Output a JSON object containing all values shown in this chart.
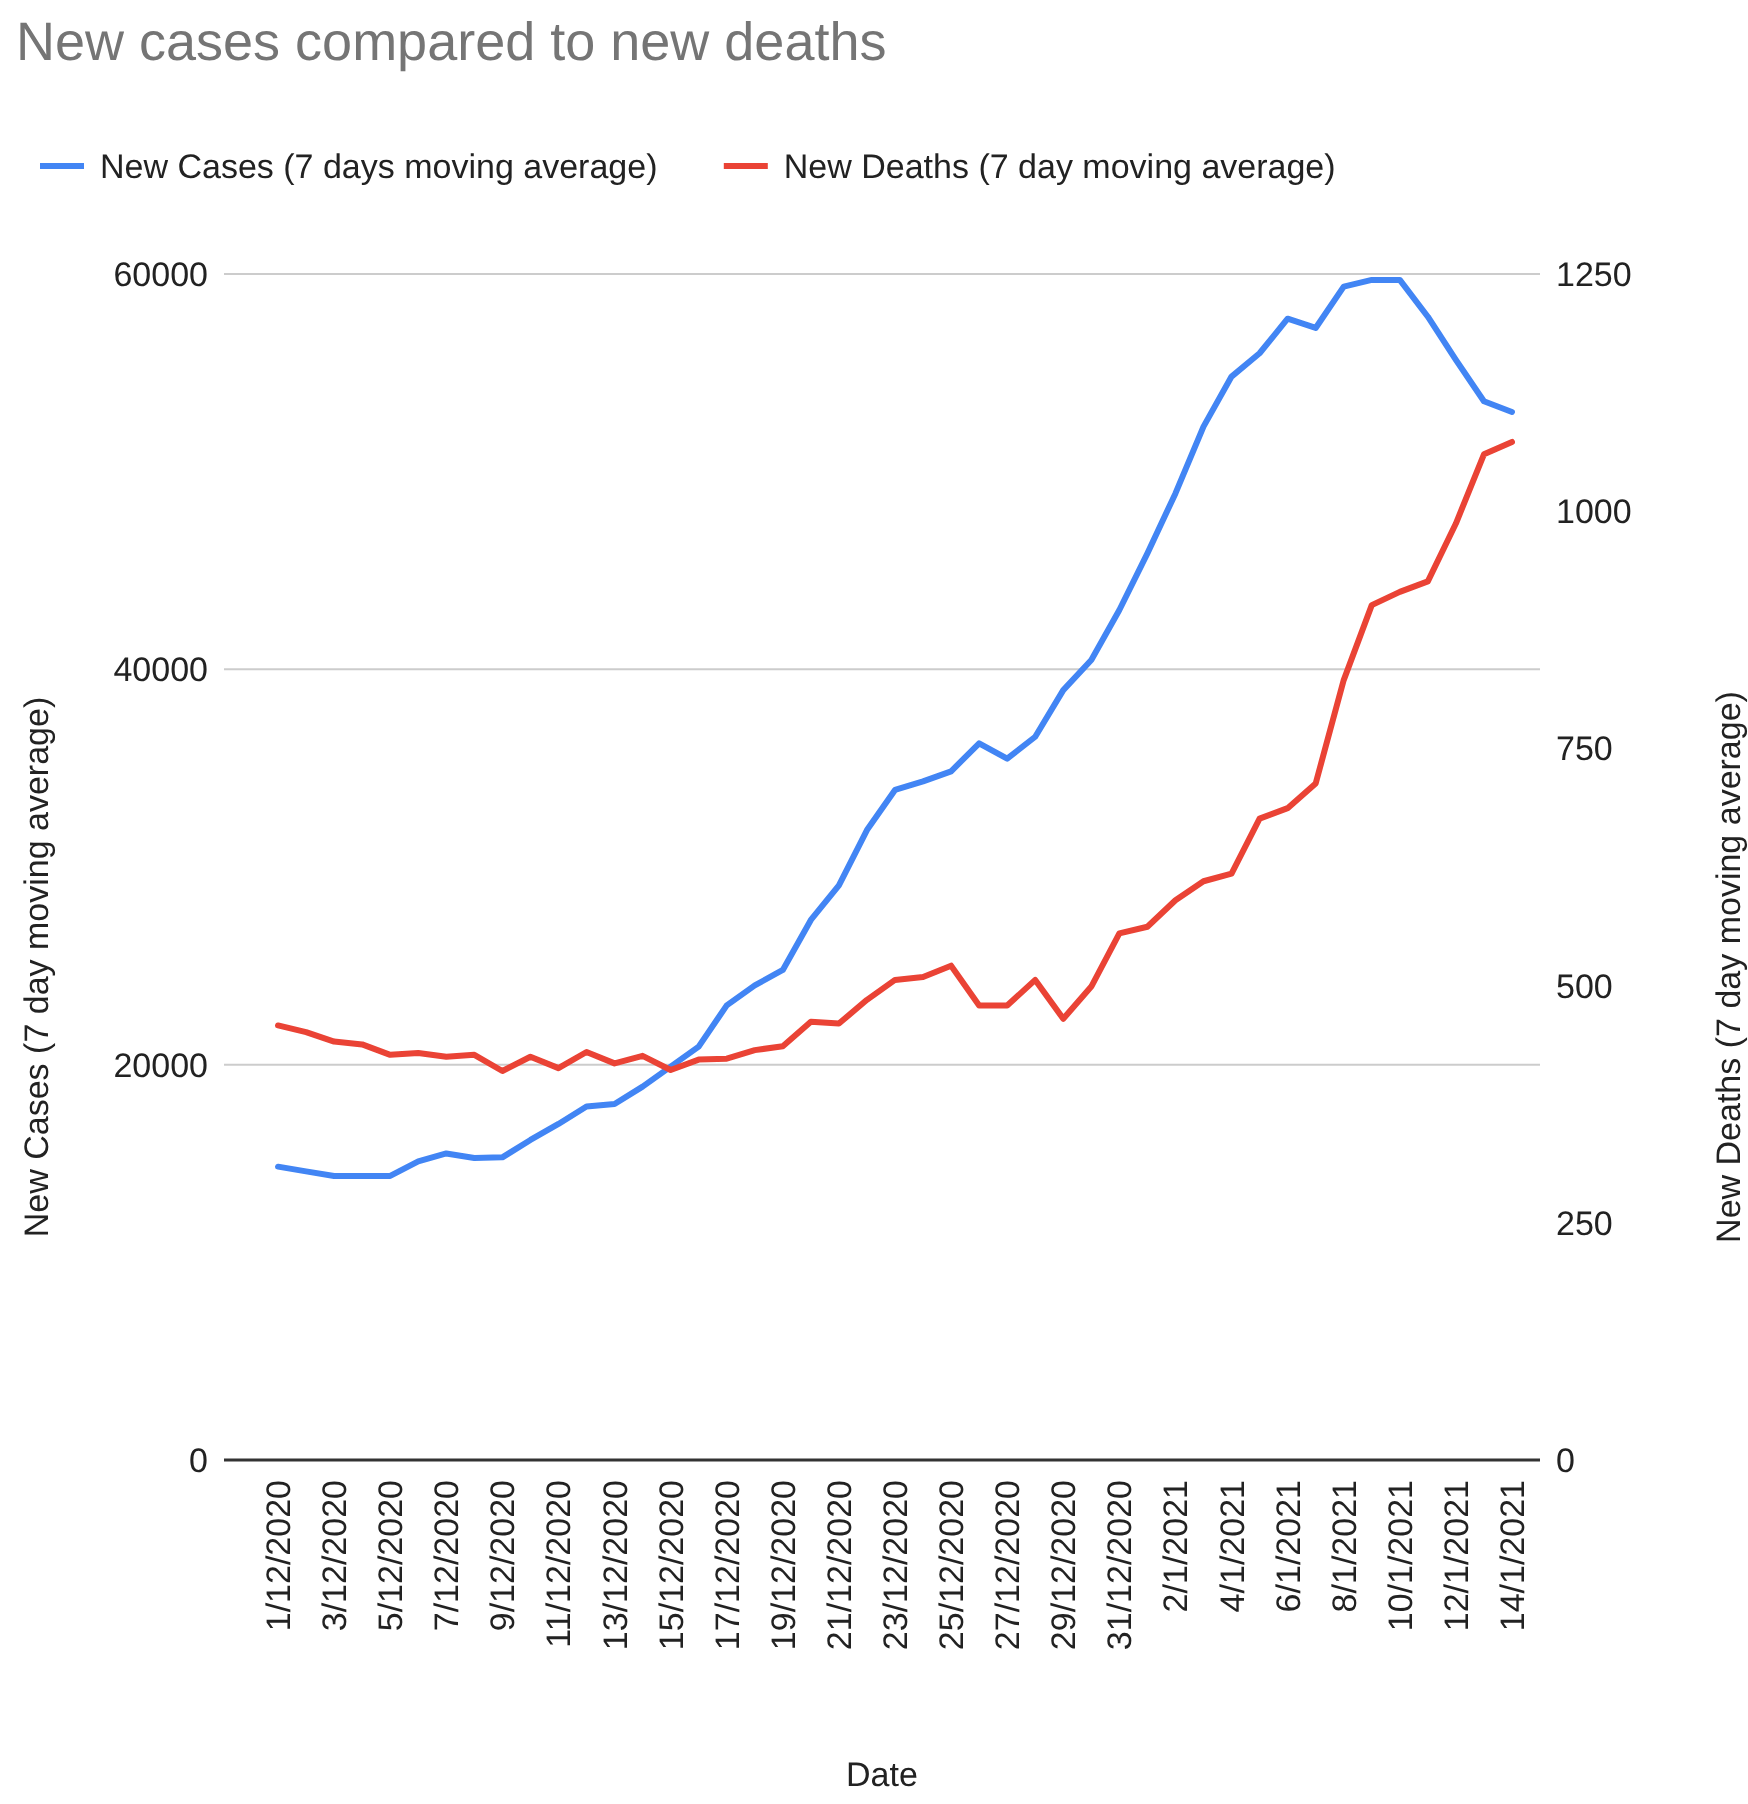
{
  "chart_data": {
    "type": "line",
    "title": "New cases compared to new deaths",
    "xlabel": "Date",
    "ylabel": "New Cases (7 day moving average)",
    "y2label": "New Deaths (7 day moving average)",
    "categories": [
      "1/12/2020",
      null,
      "3/12/2020",
      null,
      "5/12/2020",
      null,
      "7/12/2020",
      null,
      "9/12/2020",
      null,
      "11/12/2020",
      null,
      "13/12/2020",
      null,
      "15/12/2020",
      null,
      "17/12/2020",
      null,
      "19/12/2020",
      null,
      "21/12/2020",
      null,
      "23/12/2020",
      null,
      "25/12/2020",
      null,
      "27/12/2020",
      null,
      "29/12/2020",
      null,
      "31/12/2020",
      null,
      "2/1/2021",
      null,
      "4/1/2021",
      null,
      "6/1/2021",
      null,
      "8/1/2021",
      null,
      "10/1/2021",
      null,
      "12/1/2021",
      null,
      "14/1/2021"
    ],
    "series": [
      {
        "name": "New Cases (7 days moving average)",
        "color": "#4285f4",
        "values": [
          14840,
          14600,
          14370,
          14370,
          14370,
          15110,
          15510,
          15280,
          15310,
          16190,
          17000,
          17880,
          18010,
          18890,
          19900,
          20910,
          23000,
          24010,
          24790,
          27320,
          29070,
          31870,
          33900,
          34330,
          34840,
          36260,
          35480,
          36590,
          38950,
          40470,
          43000,
          45870,
          48900,
          52280,
          54810,
          55990,
          57740,
          57270,
          59360,
          59700,
          59700,
          57840,
          55650,
          53560,
          53020
        ]
      },
      {
        "name": "New Deaths (7 day moving average)",
        "color": "#ea4335",
        "axis": "y2",
        "values": [
          458,
          451,
          441,
          438,
          427,
          429,
          425,
          427,
          410,
          425,
          413,
          430,
          418,
          426,
          411,
          422,
          423,
          432,
          436,
          462,
          460,
          485,
          506,
          509,
          521,
          479,
          479,
          506,
          465,
          499,
          555,
          562,
          590,
          610,
          618,
          676,
          687,
          713,
          822,
          901,
          915,
          926,
          987,
          1060,
          1073
        ]
      }
    ],
    "ylim": [
      0,
      60000
    ],
    "yticks": [
      0,
      20000,
      40000,
      60000
    ],
    "y2lim": [
      0,
      1250
    ],
    "y2ticks": [
      0,
      250,
      500,
      750,
      1000,
      1250
    ],
    "grid": "y",
    "legend": "top",
    "marker": "none",
    "line_style": "solid"
  }
}
